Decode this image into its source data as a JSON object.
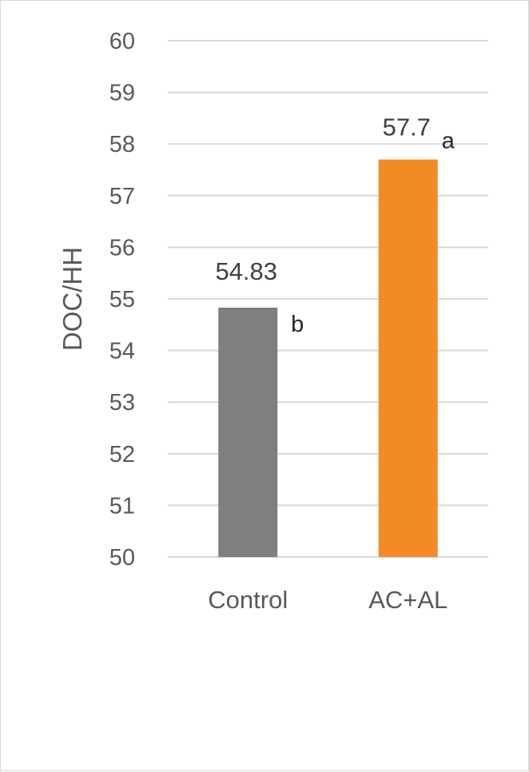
{
  "chart_data": {
    "type": "bar",
    "categories": [
      "Control",
      "AC+AL"
    ],
    "values": [
      54.83,
      57.7
    ],
    "value_labels": [
      "54.83",
      "57.7"
    ],
    "significance_letters": [
      "b",
      "a"
    ],
    "colors": [
      "#7f7f7f",
      "#f28a26"
    ],
    "xlabel": "",
    "ylabel": "DOC/HH",
    "ylim": [
      50,
      60
    ],
    "yticks": [
      "50",
      "51",
      "52",
      "53",
      "54",
      "55",
      "56",
      "57",
      "58",
      "59",
      "60"
    ],
    "grid": true,
    "legend": "none"
  }
}
